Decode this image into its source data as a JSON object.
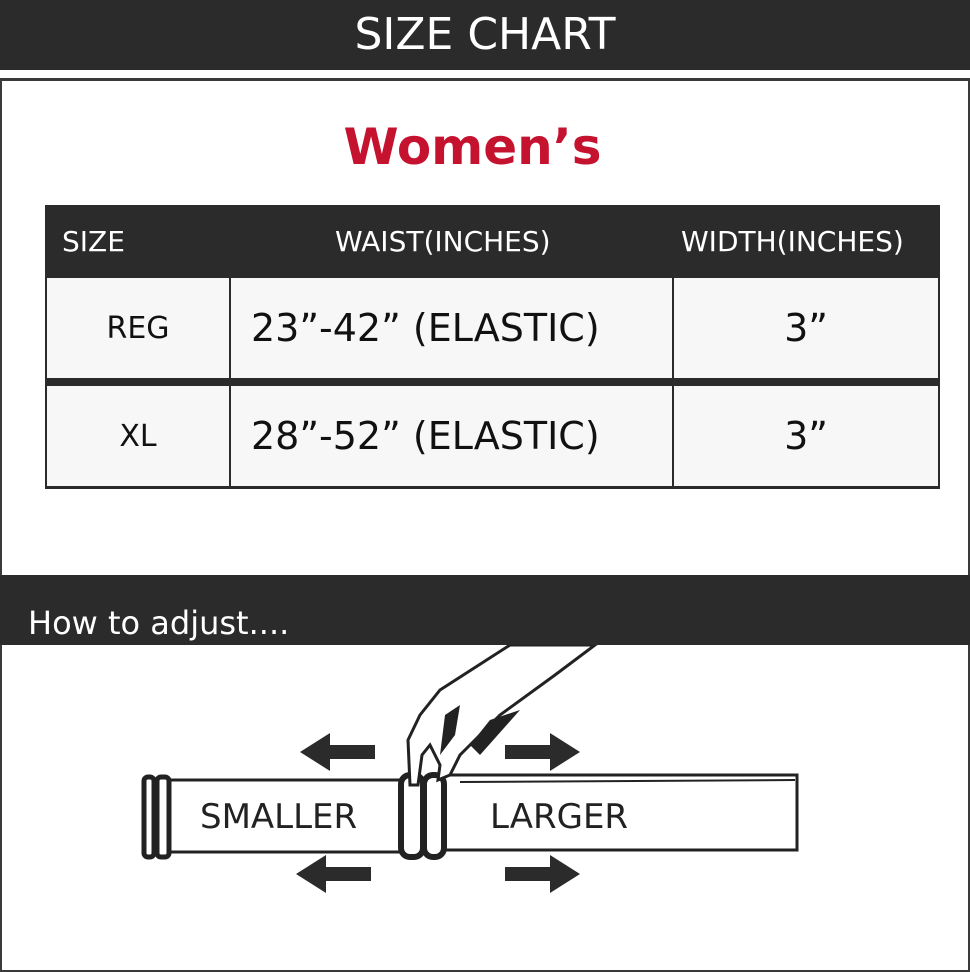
{
  "header": {
    "title": "SIZE CHART"
  },
  "section_title": "Women’s",
  "table": {
    "columns": [
      "SIZE",
      "WAIST(INCHES)",
      "WIDTH(INCHES)"
    ],
    "rows": [
      {
        "size": "REG",
        "waist": "23”-42” (ELASTIC)",
        "width": "3”"
      },
      {
        "size": "XL",
        "waist": "28”-52” (ELASTIC)",
        "width": "3”"
      }
    ]
  },
  "adjust": {
    "title": "How to adjust....",
    "smaller": "SMALLER",
    "larger": "LARGER"
  },
  "colors": {
    "dark": "#2b2b2b",
    "accent": "#c4122f"
  }
}
